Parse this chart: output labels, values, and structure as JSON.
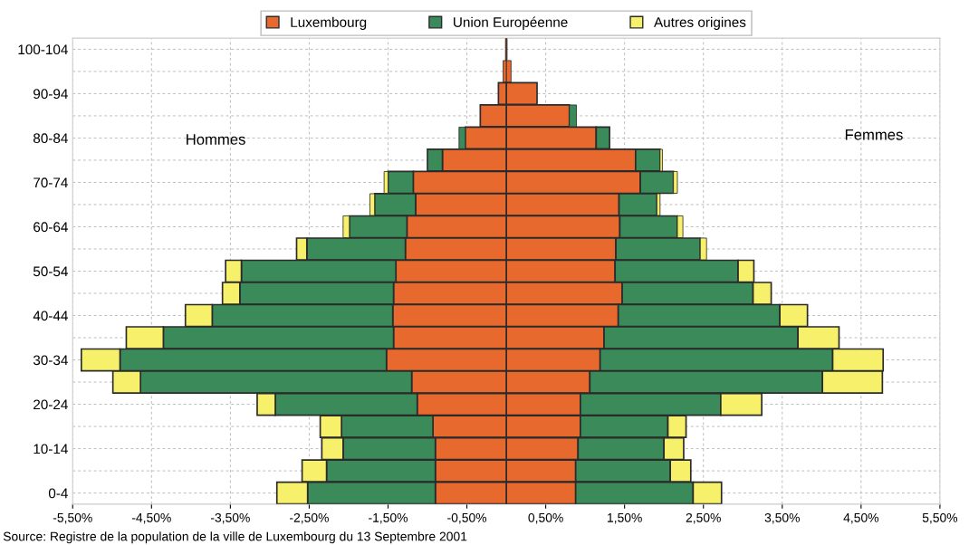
{
  "chart_data": {
    "type": "bar",
    "orientation": "horizontal",
    "stacked": true,
    "categories": [
      "100-104",
      null,
      "90-94",
      null,
      "80-84",
      null,
      "70-74",
      null,
      "60-64",
      null,
      "50-54",
      null,
      "40-44",
      null,
      "30-34",
      null,
      "20-24",
      null,
      "10-14",
      null,
      "0-4"
    ],
    "series": [
      {
        "name": "Luxembourg",
        "color": "#e8692e",
        "values": [
          0.01,
          0.06,
          0.39,
          0.8,
          1.14,
          1.64,
          1.7,
          1.43,
          1.44,
          1.39,
          1.38,
          1.47,
          1.42,
          1.24,
          1.19,
          1.06,
          0.94,
          0.94,
          0.91,
          0.88,
          0.88
        ]
      },
      {
        "name": "Union Européenne",
        "color": "#3a8a5a",
        "values": [
          0,
          0,
          0,
          0.09,
          0.17,
          0.31,
          0.42,
          0.48,
          0.73,
          1.07,
          1.56,
          1.66,
          2.05,
          2.46,
          2.95,
          2.95,
          1.78,
          1.11,
          1.09,
          1.2,
          1.49
        ]
      },
      {
        "name": "Autres origines",
        "color": "#f7f06a",
        "values": [
          0,
          0,
          0,
          0,
          0,
          0.03,
          0.05,
          0.04,
          0.07,
          0.08,
          0.2,
          0.23,
          0.35,
          0.52,
          0.64,
          0.76,
          0.52,
          0.23,
          0.25,
          0.26,
          0.36
        ]
      },
      {
        "color": "#e8692e",
        "values": [
          -0.01,
          -0.04,
          -0.1,
          -0.33,
          -0.52,
          -0.81,
          -1.18,
          -1.15,
          -1.26,
          -1.28,
          -1.4,
          -1.43,
          -1.44,
          -1.43,
          -1.52,
          -1.2,
          -1.13,
          -0.93,
          -0.9,
          -0.9,
          -0.9
        ]
      },
      {
        "color": "#3a8a5a",
        "values": [
          0,
          0,
          0,
          0,
          -0.08,
          -0.19,
          -0.32,
          -0.52,
          -0.73,
          -1.25,
          -1.96,
          -1.95,
          -2.29,
          -2.92,
          -3.38,
          -3.44,
          -1.8,
          -1.16,
          -1.17,
          -1.38,
          -1.62
        ]
      },
      {
        "color": "#f7f06a",
        "values": [
          0,
          0,
          0,
          0,
          0,
          0,
          -0.05,
          -0.06,
          -0.08,
          -0.13,
          -0.2,
          -0.22,
          -0.34,
          -0.47,
          -0.49,
          -0.35,
          -0.23,
          -0.27,
          -0.27,
          -0.31,
          -0.39
        ]
      }
    ],
    "xlim": [
      -5.5,
      5.5
    ],
    "xticks": [
      {
        "value": -5.5,
        "label": "-5,50%"
      },
      {
        "value": -4.5,
        "label": "-4,50%"
      },
      {
        "value": -3.5,
        "label": "-3,50%"
      },
      {
        "value": -2.5,
        "label": "-2,50%"
      },
      {
        "value": -1.5,
        "label": "-1,50%"
      },
      {
        "value": -0.5,
        "label": "-0,50%"
      },
      {
        "value": 0.5,
        "label": "0,50%"
      },
      {
        "value": 1.5,
        "label": "1,50%"
      },
      {
        "value": 2.5,
        "label": "2,50%"
      },
      {
        "value": 3.5,
        "label": "3,50%"
      },
      {
        "value": 4.5,
        "label": "4,50%"
      },
      {
        "value": 5.5,
        "label": "5,50%"
      }
    ],
    "grid": true,
    "legend": "top",
    "annotations": [
      "Hommes",
      "Femmes",
      "Source: Registre de la population de la ville de Luxembourg du 13 Septembre 2001"
    ]
  }
}
